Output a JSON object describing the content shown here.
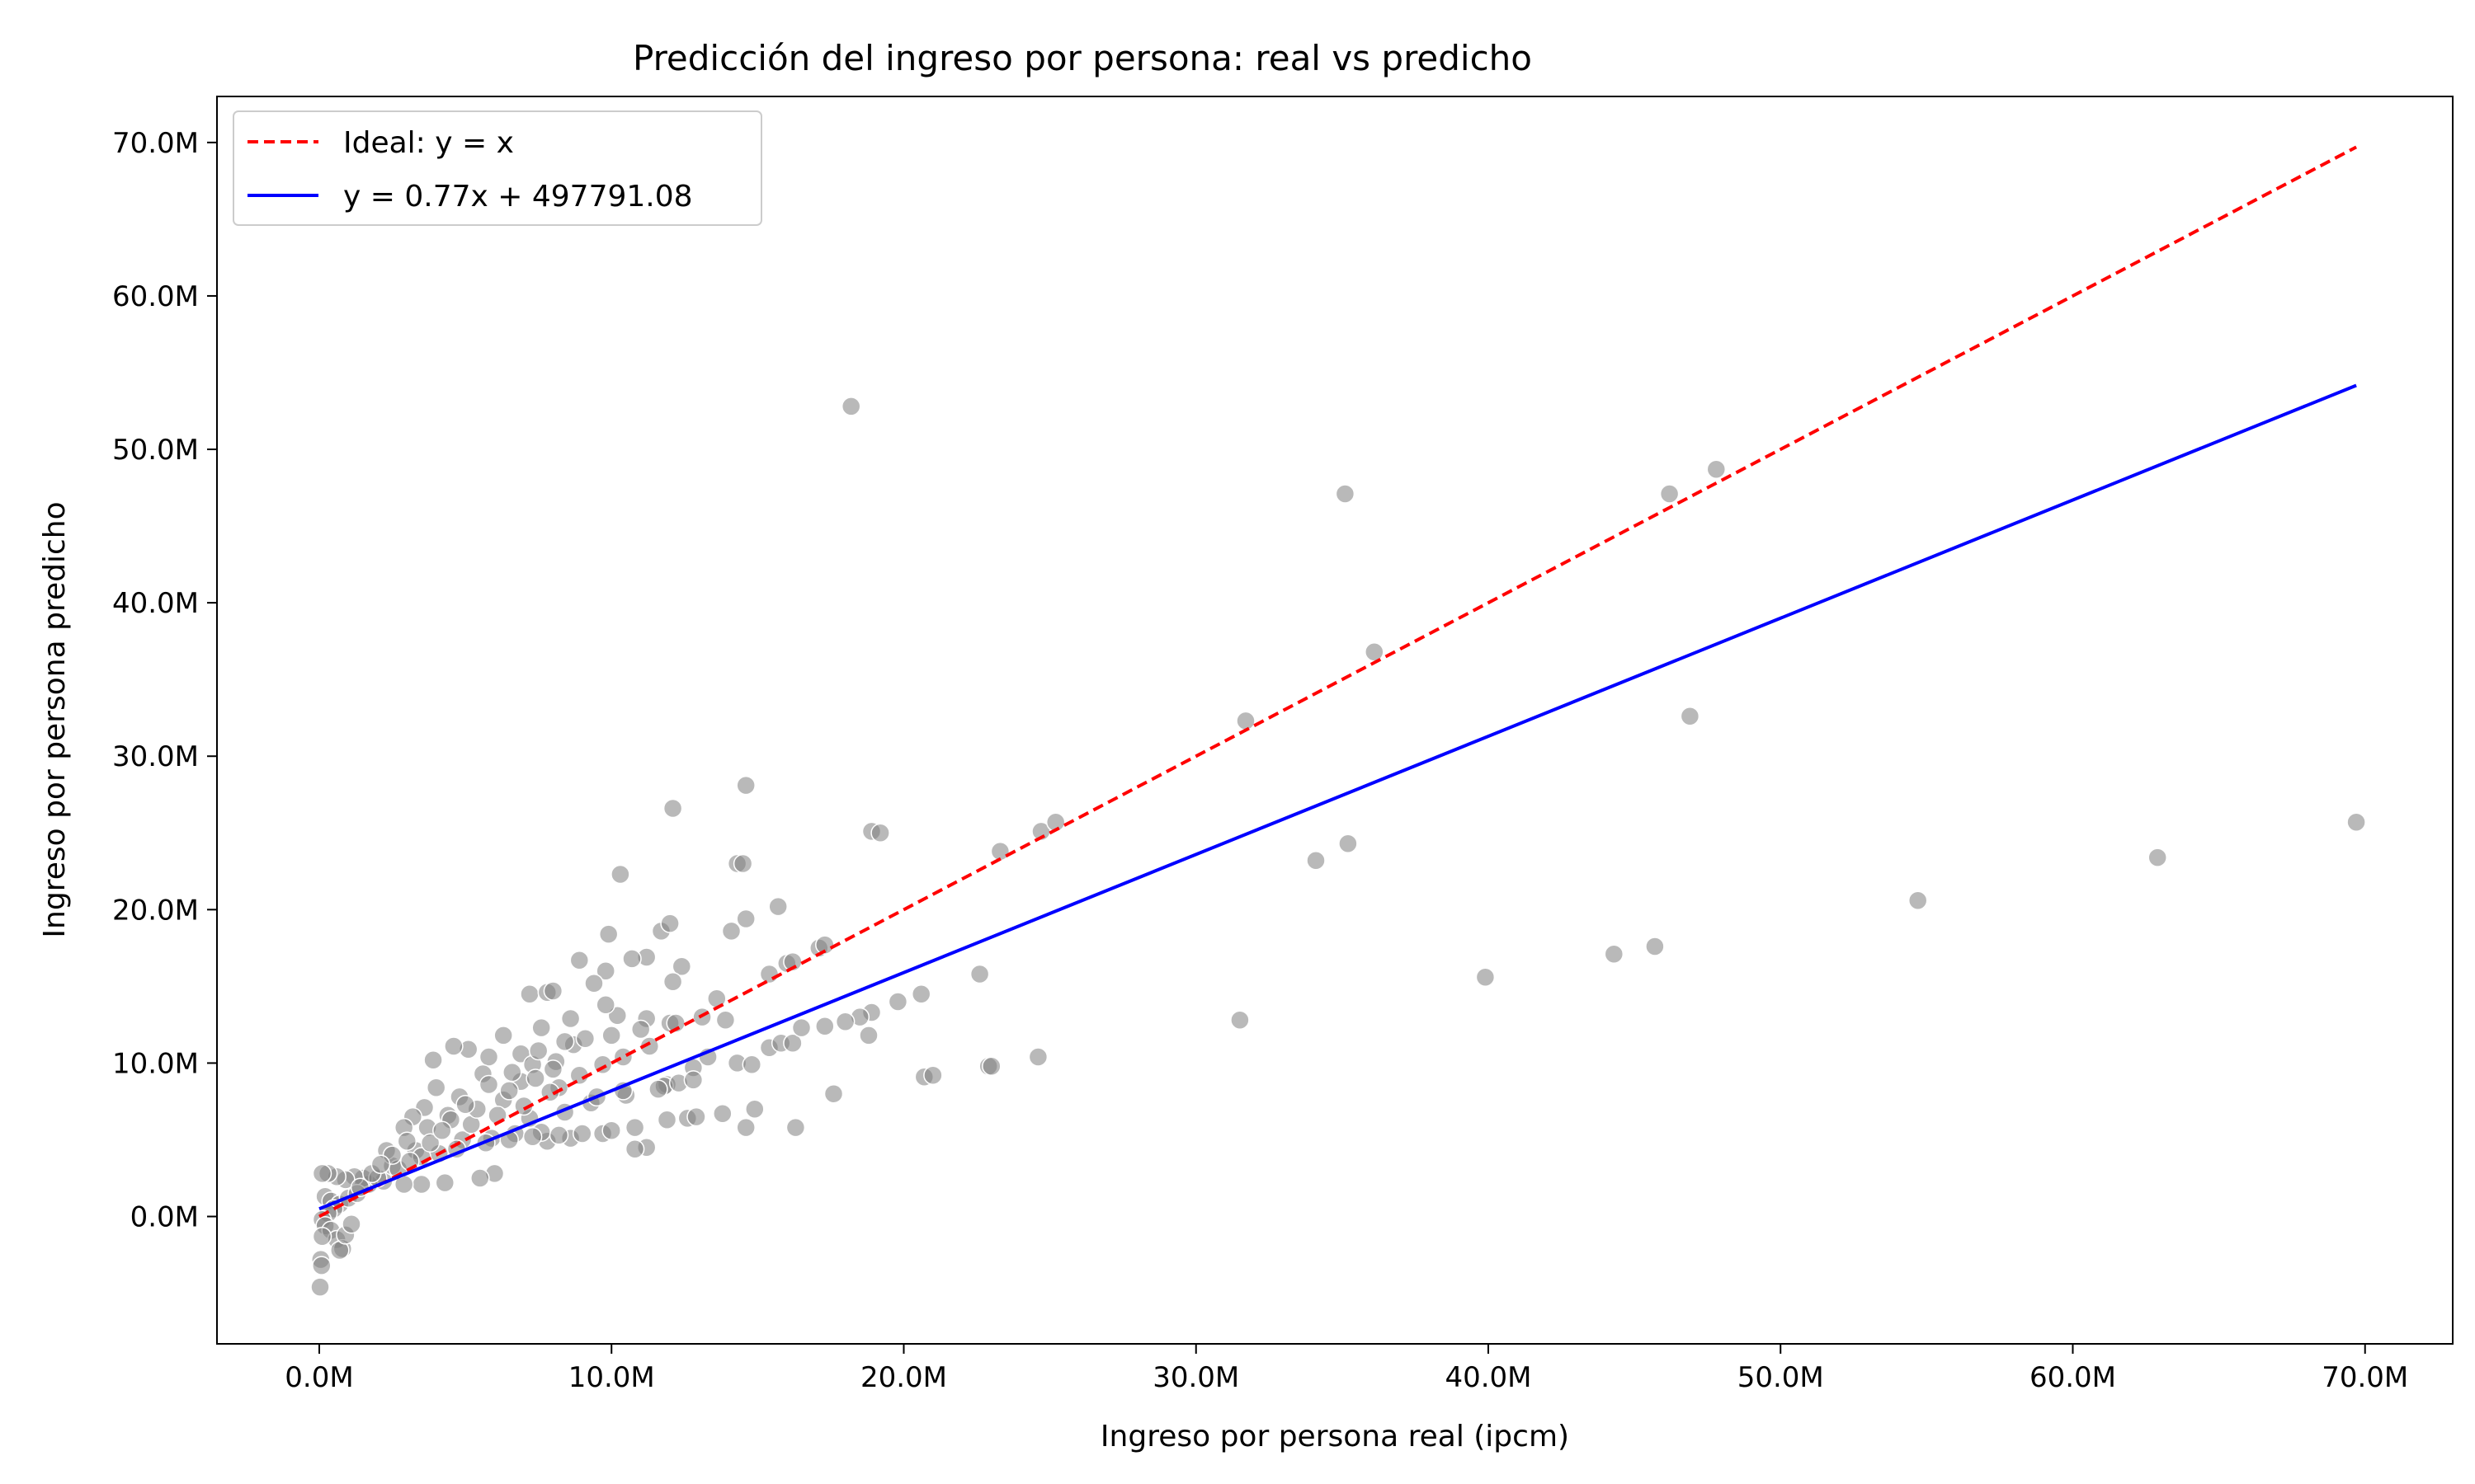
{
  "chart_data": {
    "type": "scatter",
    "title": "Predicción del ingreso por persona: real vs predicho",
    "xlabel": "Ingreso por persona real (ipcm)",
    "ylabel": "Ingreso por persona predicho",
    "xlim": [
      -3500000,
      73000000
    ],
    "ylim": [
      -8300000,
      73000000
    ],
    "xticks": [
      0,
      10000000,
      20000000,
      30000000,
      40000000,
      50000000,
      60000000,
      70000000
    ],
    "xtick_labels": [
      "0.0M",
      "10.0M",
      "20.0M",
      "30.0M",
      "40.0M",
      "50.0M",
      "60.0M",
      "70.0M"
    ],
    "yticks": [
      0,
      10000000,
      20000000,
      30000000,
      40000000,
      50000000,
      60000000,
      70000000
    ],
    "ytick_labels": [
      "0.0M",
      "10.0M",
      "20.0M",
      "30.0M",
      "40.0M",
      "50.0M",
      "60.0M",
      "70.0M"
    ],
    "grid": false,
    "legend_position": "top-left",
    "series": [
      {
        "name": "Ideal: y = x",
        "kind": "line",
        "style": "dashed",
        "color": "#ff0000",
        "x": [
          0,
          69700000
        ],
        "y": [
          0,
          69700000
        ]
      },
      {
        "name": "y = 0.77x + 497791.08",
        "kind": "line",
        "style": "solid",
        "color": "#0000ff",
        "x": [
          0,
          69700000
        ],
        "y": [
          497791.08,
          54166791.08
        ]
      },
      {
        "kind": "scatter",
        "color": "#808080",
        "points": [
          [
            18200000,
            52800000
          ],
          [
            35100000,
            47100000
          ],
          [
            46200000,
            47100000
          ],
          [
            47800000,
            48700000
          ],
          [
            36100000,
            36800000
          ],
          [
            31700000,
            32300000
          ],
          [
            46900000,
            32600000
          ],
          [
            14600000,
            28100000
          ],
          [
            12100000,
            26600000
          ],
          [
            18900000,
            25100000
          ],
          [
            19200000,
            25000000
          ],
          [
            24700000,
            25100000
          ],
          [
            25200000,
            25700000
          ],
          [
            23300000,
            23800000
          ],
          [
            34100000,
            23200000
          ],
          [
            35200000,
            24300000
          ],
          [
            62900000,
            23400000
          ],
          [
            69700000,
            25700000
          ],
          [
            54700000,
            20600000
          ],
          [
            44300000,
            17100000
          ],
          [
            45700000,
            17600000
          ],
          [
            39900000,
            15600000
          ],
          [
            31500000,
            12800000
          ],
          [
            24600000,
            10400000
          ],
          [
            22900000,
            9800000
          ],
          [
            23000000,
            9800000
          ],
          [
            20700000,
            9100000
          ],
          [
            21000000,
            9200000
          ],
          [
            17600000,
            8000000
          ],
          [
            16300000,
            5800000
          ],
          [
            14900000,
            7000000
          ],
          [
            14600000,
            5800000
          ],
          [
            22600000,
            15800000
          ],
          [
            20600000,
            14500000
          ],
          [
            19800000,
            14000000
          ],
          [
            18900000,
            13300000
          ],
          [
            18500000,
            13000000
          ],
          [
            18800000,
            11800000
          ],
          [
            17100000,
            17500000
          ],
          [
            17300000,
            17700000
          ],
          [
            15700000,
            20200000
          ],
          [
            14300000,
            23000000
          ],
          [
            14500000,
            23000000
          ],
          [
            14600000,
            19400000
          ],
          [
            14100000,
            18600000
          ],
          [
            10300000,
            22300000
          ],
          [
            9900000,
            18400000
          ],
          [
            11700000,
            18600000
          ],
          [
            12000000,
            19100000
          ],
          [
            11200000,
            16900000
          ],
          [
            10700000,
            16800000
          ],
          [
            12400000,
            16300000
          ],
          [
            15400000,
            15800000
          ],
          [
            16000000,
            16500000
          ],
          [
            16200000,
            16600000
          ],
          [
            15400000,
            11000000
          ],
          [
            15800000,
            11300000
          ],
          [
            16200000,
            11300000
          ],
          [
            13100000,
            13000000
          ],
          [
            13900000,
            12800000
          ],
          [
            12100000,
            15300000
          ],
          [
            12000000,
            12600000
          ],
          [
            11200000,
            12900000
          ],
          [
            10200000,
            13100000
          ],
          [
            9800000,
            13800000
          ],
          [
            8600000,
            12900000
          ],
          [
            7200000,
            14500000
          ],
          [
            7800000,
            14600000
          ],
          [
            8000000,
            14700000
          ],
          [
            8900000,
            16700000
          ],
          [
            9800000,
            16000000
          ],
          [
            9400000,
            15200000
          ],
          [
            8700000,
            11200000
          ],
          [
            7600000,
            12300000
          ],
          [
            6300000,
            11800000
          ],
          [
            5100000,
            10900000
          ],
          [
            3900000,
            10200000
          ],
          [
            4600000,
            11100000
          ],
          [
            5800000,
            10400000
          ],
          [
            6900000,
            10600000
          ],
          [
            7300000,
            9900000
          ],
          [
            8100000,
            10100000
          ],
          [
            9100000,
            11600000
          ],
          [
            10000000,
            11800000
          ],
          [
            11000000,
            12200000
          ],
          [
            12200000,
            12600000
          ],
          [
            13300000,
            10400000
          ],
          [
            12800000,
            9700000
          ],
          [
            11900000,
            8600000
          ],
          [
            10500000,
            7900000
          ],
          [
            11800000,
            8500000
          ],
          [
            12600000,
            6400000
          ],
          [
            12900000,
            6500000
          ],
          [
            13800000,
            6700000
          ],
          [
            14300000,
            10000000
          ],
          [
            14800000,
            9900000
          ],
          [
            11900000,
            6300000
          ],
          [
            10800000,
            5800000
          ],
          [
            11200000,
            4500000
          ],
          [
            10800000,
            4400000
          ],
          [
            9700000,
            5400000
          ],
          [
            8600000,
            5100000
          ],
          [
            7800000,
            4900000
          ],
          [
            7200000,
            6400000
          ],
          [
            8200000,
            8400000
          ],
          [
            6900000,
            8800000
          ],
          [
            6300000,
            7600000
          ],
          [
            5600000,
            9300000
          ],
          [
            4800000,
            7800000
          ],
          [
            4400000,
            6600000
          ],
          [
            4000000,
            8400000
          ],
          [
            3600000,
            7100000
          ],
          [
            3200000,
            6500000
          ],
          [
            2900000,
            5800000
          ],
          [
            3300000,
            4300000
          ],
          [
            4100000,
            4100000
          ],
          [
            4900000,
            5000000
          ],
          [
            5900000,
            5100000
          ],
          [
            6700000,
            5400000
          ],
          [
            7600000,
            5500000
          ],
          [
            8400000,
            6800000
          ],
          [
            9300000,
            7400000
          ],
          [
            6000000,
            2800000
          ],
          [
            5500000,
            2500000
          ],
          [
            4300000,
            2200000
          ],
          [
            3500000,
            2100000
          ],
          [
            2900000,
            2100000
          ],
          [
            2200000,
            2300000
          ],
          [
            2500000,
            3300000
          ],
          [
            2300000,
            4300000
          ],
          [
            1700000,
            2100000
          ],
          [
            1500000,
            2500000
          ],
          [
            1200000,
            2600000
          ],
          [
            900000,
            2400000
          ],
          [
            600000,
            2600000
          ],
          [
            300000,
            2800000
          ],
          [
            100000,
            2800000
          ],
          [
            200000,
            1300000
          ],
          [
            400000,
            1000000
          ],
          [
            700000,
            800000
          ],
          [
            1000000,
            1200000
          ],
          [
            1300000,
            1500000
          ],
          [
            500000,
            500000
          ],
          [
            300000,
            200000
          ],
          [
            100000,
            -200000
          ],
          [
            200000,
            -600000
          ],
          [
            400000,
            -900000
          ],
          [
            600000,
            -1500000
          ],
          [
            800000,
            -2100000
          ],
          [
            100000,
            -1300000
          ],
          [
            50000,
            -2800000
          ],
          [
            80000,
            -3200000
          ],
          [
            30000,
            -4600000
          ],
          [
            700000,
            -2200000
          ],
          [
            900000,
            -1200000
          ],
          [
            1100000,
            -500000
          ],
          [
            2000000,
            2500000
          ],
          [
            2700000,
            3100000
          ],
          [
            3500000,
            3900000
          ],
          [
            5200000,
            6000000
          ],
          [
            6100000,
            6600000
          ],
          [
            7000000,
            7200000
          ],
          [
            7900000,
            8100000
          ],
          [
            8900000,
            9200000
          ],
          [
            9700000,
            9900000
          ],
          [
            10400000,
            10400000
          ],
          [
            11300000,
            11100000
          ],
          [
            13600000,
            14200000
          ],
          [
            16500000,
            12300000
          ],
          [
            17300000,
            12400000
          ],
          [
            18000000,
            12700000
          ],
          [
            9500000,
            7800000
          ],
          [
            10400000,
            8200000
          ],
          [
            11600000,
            8300000
          ],
          [
            12300000,
            8700000
          ],
          [
            12800000,
            8900000
          ],
          [
            3700000,
            5800000
          ],
          [
            4500000,
            6300000
          ],
          [
            5400000,
            7000000
          ],
          [
            6500000,
            8200000
          ],
          [
            7400000,
            9000000
          ],
          [
            8000000,
            9600000
          ],
          [
            2500000,
            4000000
          ],
          [
            3000000,
            4900000
          ],
          [
            1800000,
            2800000
          ],
          [
            1400000,
            1900000
          ],
          [
            2100000,
            3400000
          ],
          [
            4700000,
            4400000
          ],
          [
            5700000,
            4800000
          ],
          [
            6500000,
            5000000
          ],
          [
            7300000,
            5200000
          ],
          [
            8200000,
            5300000
          ],
          [
            9000000,
            5400000
          ],
          [
            10000000,
            5600000
          ],
          [
            3100000,
            3600000
          ],
          [
            3800000,
            4800000
          ],
          [
            4200000,
            5600000
          ],
          [
            5000000,
            7300000
          ],
          [
            5800000,
            8600000
          ],
          [
            6600000,
            9400000
          ],
          [
            7500000,
            10800000
          ],
          [
            8400000,
            11400000
          ]
        ]
      }
    ]
  }
}
